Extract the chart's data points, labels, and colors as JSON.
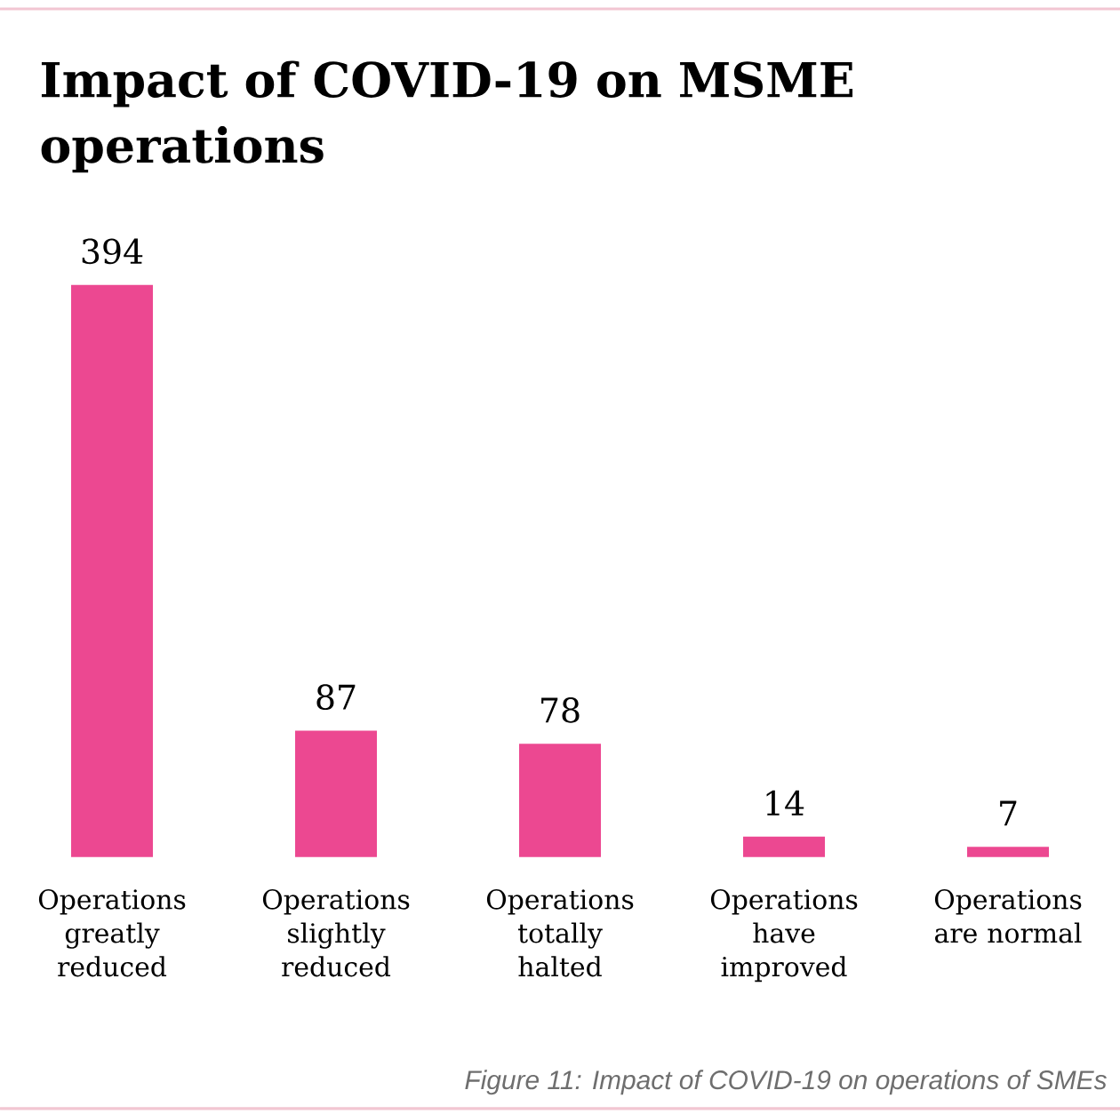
{
  "chart_data": {
    "type": "bar",
    "title": "Impact of COVID-19 on MSME operations",
    "categories": [
      "Operations greatly reduced",
      "Operations slightly reduced",
      "Operations totally halted",
      "Operations have improved",
      "Operations are normal"
    ],
    "values": [
      394,
      87,
      78,
      14,
      7
    ],
    "color": "#ec4891",
    "data_labels": true,
    "annotations": [
      "Figure 11: Impact of COVID-19 on operations of SMEs"
    ]
  }
}
